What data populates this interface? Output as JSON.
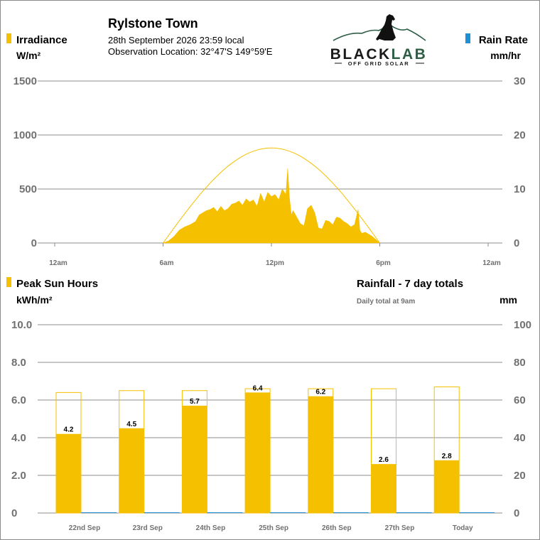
{
  "header": {
    "site_name": "Rylstone Town",
    "datetime": "28th September 2026  23:59 local",
    "location_line": "Observation Location:  32°47'S 149°59'E"
  },
  "logo": {
    "brand": "BLACKLAB",
    "brand_part1": "BLACK",
    "brand_part2": "LAB",
    "tagline": "OFF GRID SOLAR",
    "colors": {
      "dark": "#1a1a1a",
      "green": "#2e5e46"
    }
  },
  "colors": {
    "sun": "#f5c000",
    "rain": "#1f8fd6",
    "grid": "#8c8c8c",
    "axis_text": "#707070"
  },
  "chart_data": [
    {
      "type": "area",
      "name": "irradiance-chart",
      "legend_left": "Irradiance",
      "unit_left": "W/m²",
      "legend_right": "Rain Rate",
      "unit_right": "mm/hr",
      "y_left_ticks": [
        "1500",
        "1000",
        "500",
        "0"
      ],
      "y_left_range": [
        0,
        1500
      ],
      "y_right_ticks": [
        "30",
        "20",
        "10",
        "0"
      ],
      "y_right_range": [
        0,
        30
      ],
      "x_ticks": [
        "12am",
        "6am",
        "12pm",
        "6pm",
        "12am"
      ],
      "x_range_hours": [
        0,
        24
      ],
      "clear_sky_curve": {
        "sunrise_hour": 6.0,
        "sunset_hour": 18.0,
        "peak": 880
      },
      "series": [
        {
          "x": [
            6.0,
            6.3,
            6.6,
            6.9,
            7.2,
            7.5,
            7.8,
            8.0,
            8.2,
            8.4,
            8.6,
            8.8,
            9.0,
            9.2,
            9.4,
            9.6,
            9.8,
            10.0,
            10.2,
            10.4,
            10.6,
            10.8,
            11.0,
            11.2,
            11.4,
            11.6,
            11.8,
            12.0,
            12.2,
            12.4,
            12.6,
            12.8,
            12.9,
            13.0,
            13.1,
            13.2,
            13.4,
            13.6,
            13.8,
            14.0,
            14.2,
            14.4,
            14.6,
            14.8,
            15.0,
            15.2,
            15.4,
            15.6,
            15.8,
            16.0,
            16.2,
            16.4,
            16.6,
            16.8,
            16.9,
            17.0,
            17.2,
            17.4,
            17.6,
            17.8,
            18.0
          ],
          "values": [
            0,
            20,
            60,
            120,
            150,
            170,
            200,
            260,
            280,
            300,
            310,
            330,
            290,
            340,
            300,
            320,
            360,
            370,
            390,
            350,
            410,
            380,
            400,
            340,
            460,
            380,
            470,
            430,
            450,
            400,
            500,
            450,
            690,
            420,
            260,
            300,
            240,
            180,
            160,
            320,
            350,
            280,
            140,
            130,
            210,
            200,
            170,
            240,
            230,
            200,
            180,
            150,
            170,
            310,
            120,
            90,
            100,
            80,
            60,
            30,
            0
          ]
        }
      ]
    },
    {
      "type": "bar",
      "name": "daily-totals-chart",
      "legend_left": "Peak Sun Hours",
      "unit_left": "kWh/m²",
      "title_right": "Rainfall - 7 day totals",
      "subtitle_right": "Daily total at 9am",
      "unit_right": "mm",
      "y_left_ticks": [
        "10.0",
        "8.0",
        "6.0",
        "4.0",
        "2.0",
        "0"
      ],
      "y_left_range": [
        0,
        10
      ],
      "y_right_ticks": [
        "100",
        "80",
        "60",
        "40",
        "20",
        "0"
      ],
      "y_right_range": [
        0,
        100
      ],
      "categories": [
        "22nd Sep",
        "23rd Sep",
        "24th Sep",
        "25th Sep",
        "26th Sep",
        "27th Sep",
        "Today"
      ],
      "peak_sun_hours": [
        4.2,
        4.5,
        5.7,
        6.4,
        6.2,
        2.6,
        2.8
      ],
      "clear_sky_potential": [
        6.4,
        6.5,
        6.5,
        6.6,
        6.6,
        6.6,
        6.7
      ],
      "rainfall_mm": [
        0,
        0,
        0,
        0,
        0,
        0,
        0
      ]
    }
  ]
}
